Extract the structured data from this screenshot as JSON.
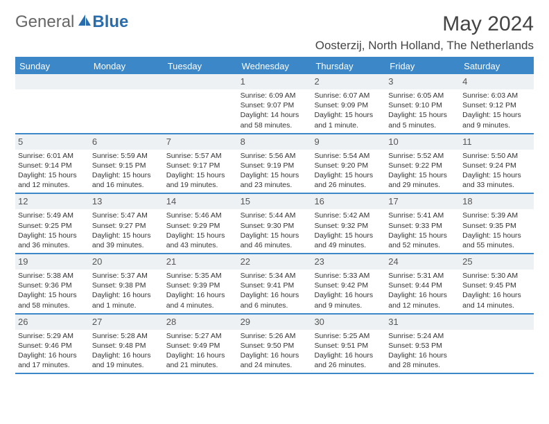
{
  "logo": {
    "text1": "General",
    "text2": "Blue",
    "icon_color": "#2a6dad",
    "text1_color": "#666666",
    "text2_color": "#2a6dad"
  },
  "title": "May 2024",
  "location": "Oosterzij, North Holland, The Netherlands",
  "colors": {
    "header_bg": "#3b87c8",
    "header_text": "#ffffff",
    "border": "#3b87c8",
    "daynum_bg": "#eef1f3",
    "text": "#333333"
  },
  "weekdays": [
    "Sunday",
    "Monday",
    "Tuesday",
    "Wednesday",
    "Thursday",
    "Friday",
    "Saturday"
  ],
  "weeks": [
    [
      {
        "empty": true
      },
      {
        "empty": true
      },
      {
        "empty": true
      },
      {
        "num": "1",
        "sunrise": "Sunrise: 6:09 AM",
        "sunset": "Sunset: 9:07 PM",
        "daylight": "Daylight: 14 hours and 58 minutes."
      },
      {
        "num": "2",
        "sunrise": "Sunrise: 6:07 AM",
        "sunset": "Sunset: 9:09 PM",
        "daylight": "Daylight: 15 hours and 1 minute."
      },
      {
        "num": "3",
        "sunrise": "Sunrise: 6:05 AM",
        "sunset": "Sunset: 9:10 PM",
        "daylight": "Daylight: 15 hours and 5 minutes."
      },
      {
        "num": "4",
        "sunrise": "Sunrise: 6:03 AM",
        "sunset": "Sunset: 9:12 PM",
        "daylight": "Daylight: 15 hours and 9 minutes."
      }
    ],
    [
      {
        "num": "5",
        "sunrise": "Sunrise: 6:01 AM",
        "sunset": "Sunset: 9:14 PM",
        "daylight": "Daylight: 15 hours and 12 minutes."
      },
      {
        "num": "6",
        "sunrise": "Sunrise: 5:59 AM",
        "sunset": "Sunset: 9:15 PM",
        "daylight": "Daylight: 15 hours and 16 minutes."
      },
      {
        "num": "7",
        "sunrise": "Sunrise: 5:57 AM",
        "sunset": "Sunset: 9:17 PM",
        "daylight": "Daylight: 15 hours and 19 minutes."
      },
      {
        "num": "8",
        "sunrise": "Sunrise: 5:56 AM",
        "sunset": "Sunset: 9:19 PM",
        "daylight": "Daylight: 15 hours and 23 minutes."
      },
      {
        "num": "9",
        "sunrise": "Sunrise: 5:54 AM",
        "sunset": "Sunset: 9:20 PM",
        "daylight": "Daylight: 15 hours and 26 minutes."
      },
      {
        "num": "10",
        "sunrise": "Sunrise: 5:52 AM",
        "sunset": "Sunset: 9:22 PM",
        "daylight": "Daylight: 15 hours and 29 minutes."
      },
      {
        "num": "11",
        "sunrise": "Sunrise: 5:50 AM",
        "sunset": "Sunset: 9:24 PM",
        "daylight": "Daylight: 15 hours and 33 minutes."
      }
    ],
    [
      {
        "num": "12",
        "sunrise": "Sunrise: 5:49 AM",
        "sunset": "Sunset: 9:25 PM",
        "daylight": "Daylight: 15 hours and 36 minutes."
      },
      {
        "num": "13",
        "sunrise": "Sunrise: 5:47 AM",
        "sunset": "Sunset: 9:27 PM",
        "daylight": "Daylight: 15 hours and 39 minutes."
      },
      {
        "num": "14",
        "sunrise": "Sunrise: 5:46 AM",
        "sunset": "Sunset: 9:29 PM",
        "daylight": "Daylight: 15 hours and 43 minutes."
      },
      {
        "num": "15",
        "sunrise": "Sunrise: 5:44 AM",
        "sunset": "Sunset: 9:30 PM",
        "daylight": "Daylight: 15 hours and 46 minutes."
      },
      {
        "num": "16",
        "sunrise": "Sunrise: 5:42 AM",
        "sunset": "Sunset: 9:32 PM",
        "daylight": "Daylight: 15 hours and 49 minutes."
      },
      {
        "num": "17",
        "sunrise": "Sunrise: 5:41 AM",
        "sunset": "Sunset: 9:33 PM",
        "daylight": "Daylight: 15 hours and 52 minutes."
      },
      {
        "num": "18",
        "sunrise": "Sunrise: 5:39 AM",
        "sunset": "Sunset: 9:35 PM",
        "daylight": "Daylight: 15 hours and 55 minutes."
      }
    ],
    [
      {
        "num": "19",
        "sunrise": "Sunrise: 5:38 AM",
        "sunset": "Sunset: 9:36 PM",
        "daylight": "Daylight: 15 hours and 58 minutes."
      },
      {
        "num": "20",
        "sunrise": "Sunrise: 5:37 AM",
        "sunset": "Sunset: 9:38 PM",
        "daylight": "Daylight: 16 hours and 1 minute."
      },
      {
        "num": "21",
        "sunrise": "Sunrise: 5:35 AM",
        "sunset": "Sunset: 9:39 PM",
        "daylight": "Daylight: 16 hours and 4 minutes."
      },
      {
        "num": "22",
        "sunrise": "Sunrise: 5:34 AM",
        "sunset": "Sunset: 9:41 PM",
        "daylight": "Daylight: 16 hours and 6 minutes."
      },
      {
        "num": "23",
        "sunrise": "Sunrise: 5:33 AM",
        "sunset": "Sunset: 9:42 PM",
        "daylight": "Daylight: 16 hours and 9 minutes."
      },
      {
        "num": "24",
        "sunrise": "Sunrise: 5:31 AM",
        "sunset": "Sunset: 9:44 PM",
        "daylight": "Daylight: 16 hours and 12 minutes."
      },
      {
        "num": "25",
        "sunrise": "Sunrise: 5:30 AM",
        "sunset": "Sunset: 9:45 PM",
        "daylight": "Daylight: 16 hours and 14 minutes."
      }
    ],
    [
      {
        "num": "26",
        "sunrise": "Sunrise: 5:29 AM",
        "sunset": "Sunset: 9:46 PM",
        "daylight": "Daylight: 16 hours and 17 minutes."
      },
      {
        "num": "27",
        "sunrise": "Sunrise: 5:28 AM",
        "sunset": "Sunset: 9:48 PM",
        "daylight": "Daylight: 16 hours and 19 minutes."
      },
      {
        "num": "28",
        "sunrise": "Sunrise: 5:27 AM",
        "sunset": "Sunset: 9:49 PM",
        "daylight": "Daylight: 16 hours and 21 minutes."
      },
      {
        "num": "29",
        "sunrise": "Sunrise: 5:26 AM",
        "sunset": "Sunset: 9:50 PM",
        "daylight": "Daylight: 16 hours and 24 minutes."
      },
      {
        "num": "30",
        "sunrise": "Sunrise: 5:25 AM",
        "sunset": "Sunset: 9:51 PM",
        "daylight": "Daylight: 16 hours and 26 minutes."
      },
      {
        "num": "31",
        "sunrise": "Sunrise: 5:24 AM",
        "sunset": "Sunset: 9:53 PM",
        "daylight": "Daylight: 16 hours and 28 minutes."
      },
      {
        "empty": true
      }
    ]
  ]
}
